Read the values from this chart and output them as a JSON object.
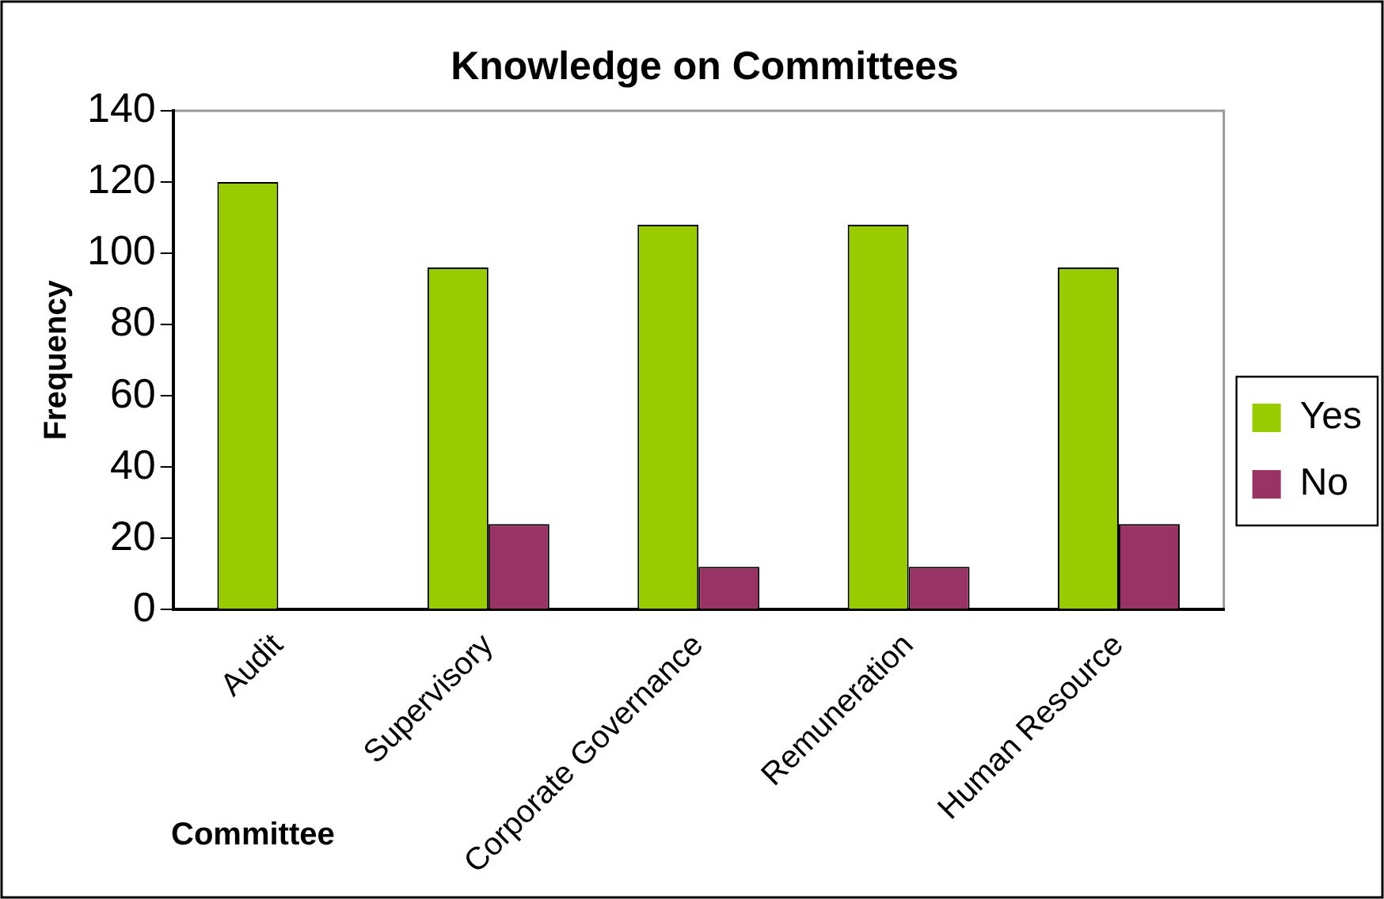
{
  "chart_data": {
    "type": "bar",
    "title": "Knowledge on Committees",
    "xlabel": "Committee",
    "ylabel": "Frequency",
    "categories": [
      "Audit",
      "Supervisory",
      "Corporate Governance",
      "Remuneration",
      "Human Resource"
    ],
    "series": [
      {
        "name": "Yes",
        "color": "#99cc00",
        "values": [
          120,
          96,
          108,
          108,
          96
        ]
      },
      {
        "name": "No",
        "color": "#993366",
        "values": [
          0,
          24,
          12,
          12,
          24
        ]
      }
    ],
    "ylim": [
      0,
      140
    ],
    "yticks": [
      0,
      20,
      40,
      60,
      80,
      100,
      120,
      140
    ],
    "grid": false,
    "legend": "right"
  }
}
